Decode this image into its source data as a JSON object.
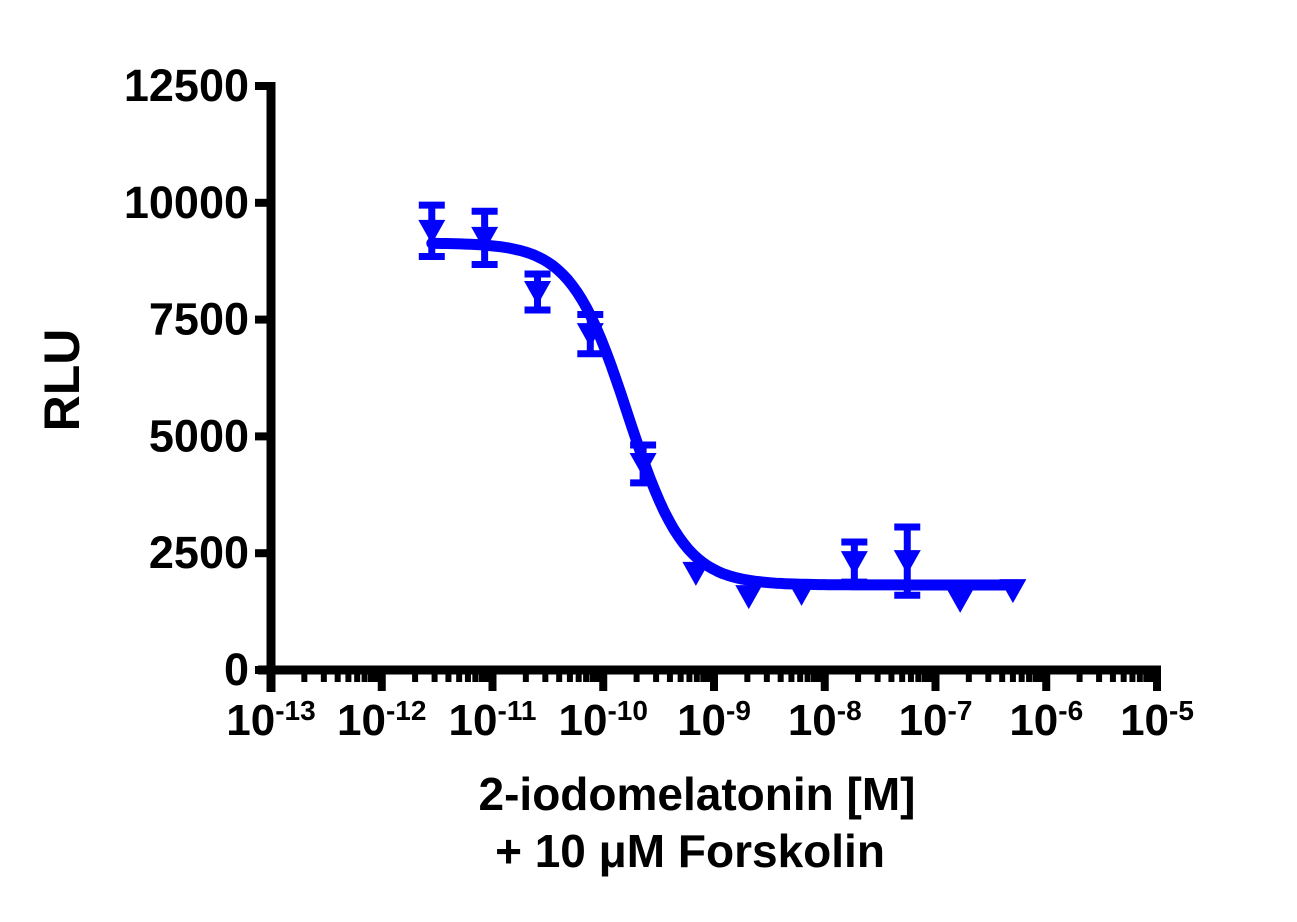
{
  "figure": {
    "background": "#ffffff",
    "ylabel": "RLU",
    "xlabel_line1": "2-iodomelatonin [M]",
    "xlabel_line2": "+ 10 μM Forskolin"
  },
  "colors": {
    "series": "#0202FC",
    "axis": "#000000",
    "text": "#000000"
  },
  "chart_data": {
    "type": "scatter",
    "title": "",
    "xlabel": "2-iodomelatonin [M] + 10 μM Forskolin",
    "ylabel": "RLU",
    "x_scale": "log10",
    "xlim_exponents": [
      -13,
      -5
    ],
    "x_tick_exponents": [
      -13,
      -12,
      -11,
      -10,
      -9,
      -8,
      -7,
      -6,
      -5
    ],
    "x_minor_ticks": "log multiples 2-9 per decade",
    "ylim": [
      0,
      12500
    ],
    "y_ticks": [
      0,
      2500,
      5000,
      7500,
      10000,
      12500
    ],
    "grid": false,
    "legend": "none",
    "series": [
      {
        "name": "2-iodomelatonin + 10 uM Forskolin",
        "marker": "triangle-down",
        "color": "#0202FC",
        "error_bar_type": "SEM",
        "points": [
          {
            "conc_M": 2.83e-12,
            "rlu": 9400,
            "sem": 550
          },
          {
            "conc_M": 8.49e-12,
            "rlu": 9250,
            "sem": 570
          },
          {
            "conc_M": 2.55e-11,
            "rlu": 8090,
            "sem": 385
          },
          {
            "conc_M": 7.64e-11,
            "rlu": 7190,
            "sem": 420
          },
          {
            "conc_M": 2.29e-10,
            "rlu": 4410,
            "sem": 405
          },
          {
            "conc_M": 6.86e-10,
            "rlu": 2080,
            "sem": 0
          },
          {
            "conc_M": 2.06e-09,
            "rlu": 1580,
            "sem": 0
          },
          {
            "conc_M": 6.17e-09,
            "rlu": 1650,
            "sem": 0
          },
          {
            "conc_M": 1.85e-08,
            "rlu": 2310,
            "sem": 430
          },
          {
            "conc_M": 5.56e-08,
            "rlu": 2330,
            "sem": 730
          },
          {
            "conc_M": 1.67e-07,
            "rlu": 1500,
            "sem": 0
          },
          {
            "conc_M": 5e-07,
            "rlu": 1710,
            "sem": 0
          }
        ]
      }
    ],
    "fit_curve": {
      "model": "log(inhibitor) vs response, variable slope",
      "top_rlu": 9140,
      "bottom_rlu": 1820,
      "log10_ic50": -9.78,
      "ic50_M": 1.7e-10,
      "hill_slope": -1.7
    }
  }
}
